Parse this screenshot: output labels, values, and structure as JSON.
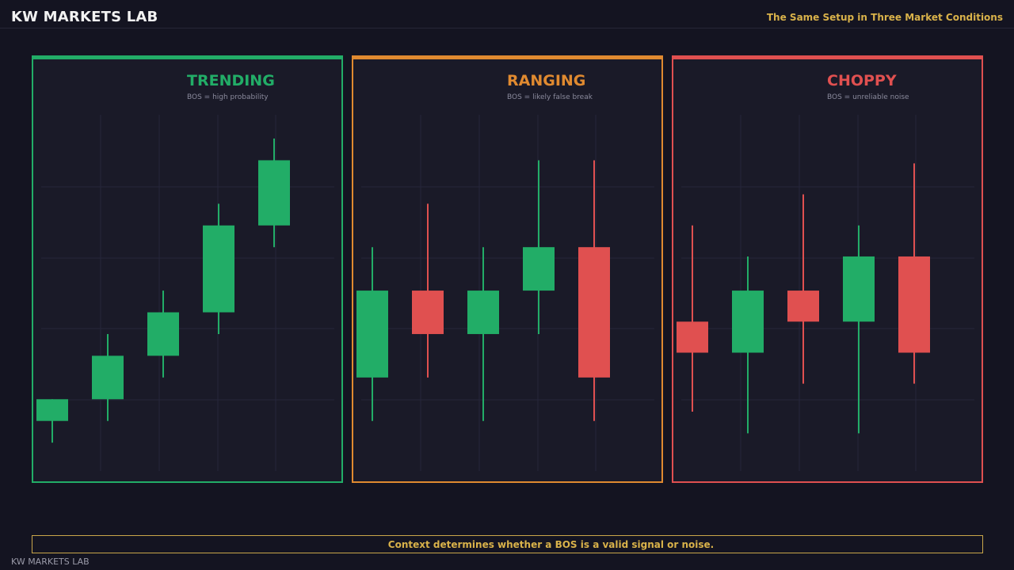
{
  "header": {
    "brand": "KW MARKETS LAB",
    "subtitle": "The Same Setup in Three Market Conditions"
  },
  "colors": {
    "bull": "#22ad67",
    "bear": "#e05050",
    "trending": "#22ad67",
    "ranging": "#e08a30",
    "choppy": "#e05050",
    "gold": "#d9b24a",
    "grid": "#26263a"
  },
  "chart_data": [
    {
      "type": "candlestick",
      "title": "TRENDING",
      "subtitle": "BOS = high probability",
      "accent": "trending",
      "ylim": [
        0,
        100
      ],
      "candles": [
        {
          "open": 9,
          "close": 16,
          "high": 16,
          "low": 2,
          "dir": "up"
        },
        {
          "open": 16,
          "close": 30,
          "high": 37,
          "low": 9,
          "dir": "up"
        },
        {
          "open": 30,
          "close": 44,
          "high": 51,
          "low": 23,
          "dir": "up"
        },
        {
          "open": 44,
          "close": 72,
          "high": 79,
          "low": 37,
          "dir": "up"
        },
        {
          "open": 72,
          "close": 93,
          "high": 100,
          "low": 65,
          "dir": "up"
        }
      ]
    },
    {
      "type": "candlestick",
      "title": "RANGING",
      "subtitle": "BOS = likely false break",
      "accent": "ranging",
      "ylim": [
        0,
        100
      ],
      "candles": [
        {
          "open": 23,
          "close": 51,
          "high": 65,
          "low": 9,
          "dir": "up"
        },
        {
          "open": 51,
          "close": 37,
          "high": 79,
          "low": 23,
          "dir": "down"
        },
        {
          "open": 37,
          "close": 51,
          "high": 65,
          "low": 9,
          "dir": "up"
        },
        {
          "open": 51,
          "close": 65,
          "high": 93,
          "low": 37,
          "dir": "up"
        },
        {
          "open": 65,
          "close": 23,
          "high": 93,
          "low": 9,
          "dir": "down"
        }
      ]
    },
    {
      "type": "candlestick",
      "title": "CHOPPY",
      "subtitle": "BOS = unreliable noise",
      "accent": "choppy",
      "ylim": [
        0,
        100
      ],
      "candles": [
        {
          "open": 41,
          "close": 31,
          "high": 72,
          "low": 12,
          "dir": "down"
        },
        {
          "open": 31,
          "close": 51,
          "high": 62,
          "low": 5,
          "dir": "up"
        },
        {
          "open": 51,
          "close": 41,
          "high": 82,
          "low": 21,
          "dir": "down"
        },
        {
          "open": 41,
          "close": 62,
          "high": 72,
          "low": 5,
          "dir": "up"
        },
        {
          "open": 62,
          "close": 31,
          "high": 92,
          "low": 21,
          "dir": "down"
        }
      ]
    }
  ],
  "footer": {
    "message": "Context determines whether a BOS is a valid signal or noise.",
    "watermark": "KW MARKETS LAB"
  }
}
